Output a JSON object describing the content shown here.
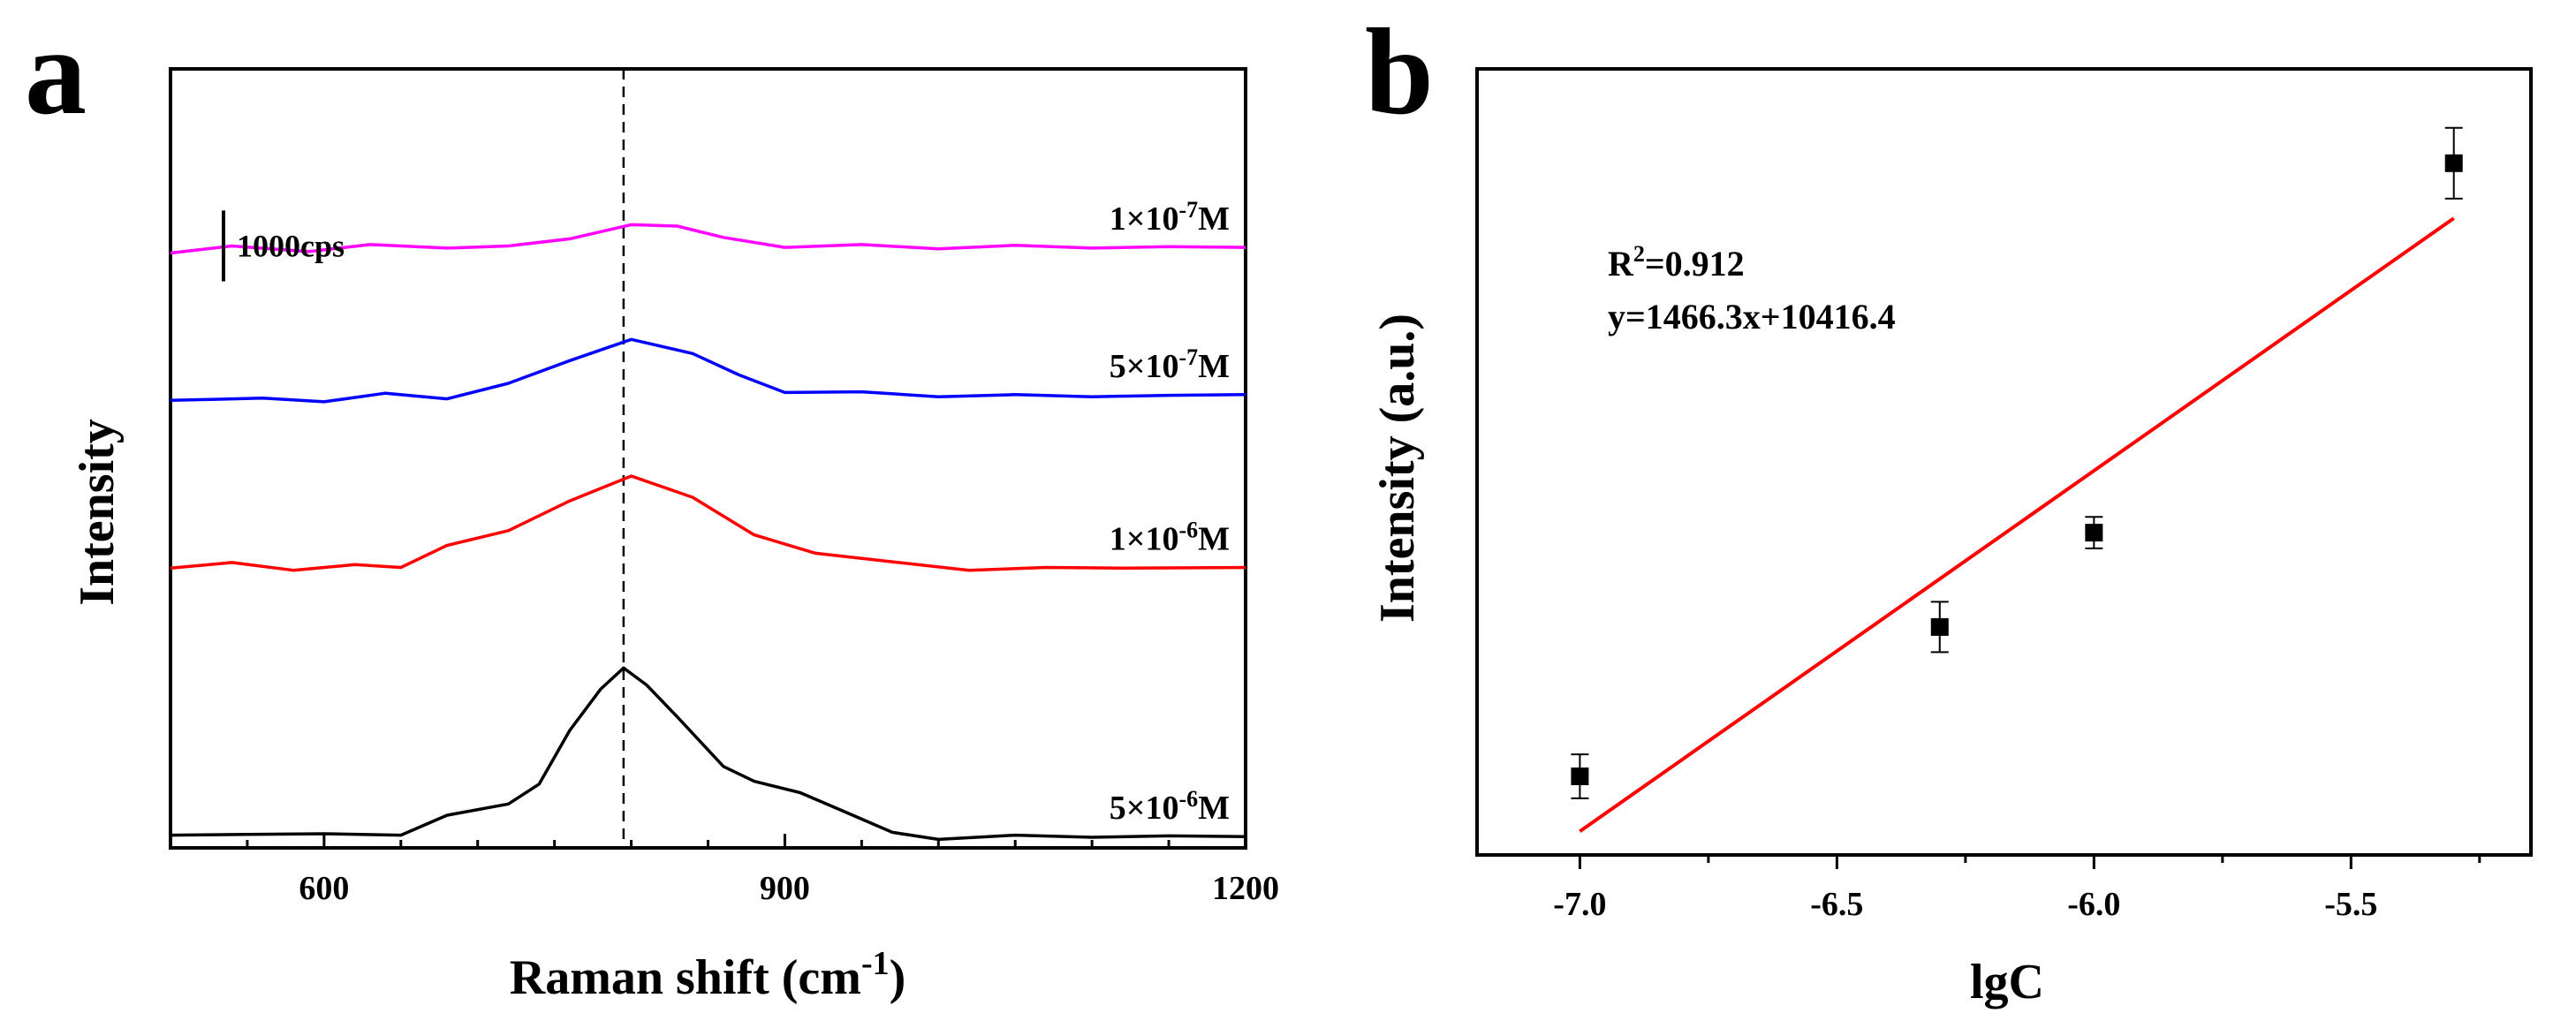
{
  "chart_data": [
    {
      "panel": "a",
      "type": "line",
      "xlabel_main": "Raman shift (cm",
      "xlabel_sup": "-1",
      "xlabel_close": ")",
      "ylabel": "Intensity",
      "xlim": [
        500,
        1200
      ],
      "ylim": [
        0,
        11000
      ],
      "xticks": [
        600,
        900,
        1200
      ],
      "xtick_labels": [
        "600",
        "900",
        "1200"
      ],
      "scale_bar": {
        "label": "1000cps",
        "value": 1000
      },
      "dashed_line_x": 795,
      "series": [
        {
          "name": "1×10-7M",
          "label_pre": "1×10",
          "label_sup": "-7",
          "label_post": "M",
          "color": "#ff00ff",
          "x": [
            500,
            540,
            590,
            630,
            680,
            720,
            760,
            800,
            830,
            860,
            900,
            950,
            1000,
            1050,
            1100,
            1150,
            1200
          ],
          "y": [
            8400,
            8500,
            8420,
            8520,
            8470,
            8500,
            8600,
            8800,
            8780,
            8620,
            8480,
            8520,
            8460,
            8510,
            8470,
            8490,
            8480
          ]
        },
        {
          "name": "5×10-7M",
          "label_pre": "5×10",
          "label_sup": "-7",
          "label_post": "M",
          "color": "#0000ff",
          "x": [
            500,
            560,
            600,
            640,
            680,
            720,
            760,
            800,
            840,
            870,
            900,
            950,
            1000,
            1050,
            1100,
            1150,
            1200
          ],
          "y": [
            6320,
            6350,
            6300,
            6420,
            6340,
            6560,
            6880,
            7180,
            6980,
            6680,
            6430,
            6440,
            6370,
            6400,
            6370,
            6390,
            6400
          ]
        },
        {
          "name": "1×10-6M",
          "label_pre": "1×10",
          "label_sup": "-6",
          "label_post": "M",
          "color": "#ff0000",
          "x": [
            500,
            540,
            580,
            620,
            650,
            680,
            720,
            760,
            800,
            840,
            880,
            920,
            970,
            1020,
            1070,
            1120,
            1200
          ],
          "y": [
            3950,
            4030,
            3920,
            4000,
            3960,
            4270,
            4480,
            4900,
            5250,
            4950,
            4420,
            4160,
            4040,
            3920,
            3960,
            3950,
            3960
          ]
        },
        {
          "name": "5×10-6M",
          "label_pre": "5×10",
          "label_sup": "-6",
          "label_post": "M",
          "color": "#000000",
          "x": [
            500,
            550,
            600,
            650,
            680,
            720,
            740,
            760,
            780,
            795,
            810,
            830,
            860,
            880,
            910,
            940,
            970,
            1000,
            1050,
            1100,
            1150,
            1200
          ],
          "y": [
            180,
            190,
            200,
            180,
            460,
            620,
            900,
            1660,
            2240,
            2540,
            2300,
            1850,
            1150,
            940,
            780,
            500,
            220,
            120,
            180,
            150,
            170,
            160
          ]
        }
      ]
    },
    {
      "panel": "b",
      "type": "scatter",
      "xlabel": "lgC",
      "ylabel": "Intensity (a.u.)",
      "xlim": [
        -7.2,
        -5.15
      ],
      "ylim": [
        0,
        1
      ],
      "xticks": [
        -7.0,
        -6.5,
        -6.0,
        -5.5
      ],
      "xtick_labels": [
        "-7.0",
        "-6.5",
        "-6.0",
        "-5.5"
      ],
      "points": {
        "x": [
          -7.0,
          -6.3,
          -6.0,
          -5.3
        ],
        "y": [
          0.1,
          0.29,
          0.41,
          0.88
        ],
        "err": [
          0.028,
          0.032,
          0.02,
          0.045
        ]
      },
      "fit": {
        "color": "#ff0000",
        "x": [
          -7.0,
          -5.3
        ],
        "y": [
          0.03,
          0.81
        ]
      },
      "annotation": {
        "r2_pre": "R",
        "r2_sup": "2",
        "r2_post": "=0.912",
        "equation": "y=1466.3x+10416.4"
      }
    }
  ]
}
